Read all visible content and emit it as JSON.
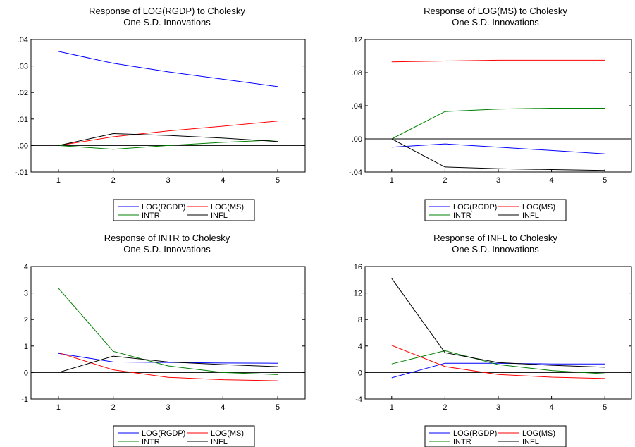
{
  "colors": {
    "LOG(RGDP)": "#0000ff",
    "LOG(MS)": "#ff0000",
    "INTR": "#008000",
    "INFL": "#000000"
  },
  "chart_data": [
    {
      "type": "line",
      "title": "Response of LOG(RGDP) to Cholesky",
      "subtitle": "One S.D. Innovations",
      "x": [
        1,
        2,
        3,
        4,
        5
      ],
      "xticks": [
        "1",
        "2",
        "3",
        "4",
        "5"
      ],
      "ylim": [
        -0.01,
        0.04
      ],
      "yticks": [
        -0.01,
        0.0,
        0.01,
        0.02,
        0.03,
        0.04
      ],
      "ytick_labels": [
        "-.01",
        ".00",
        ".01",
        ".02",
        ".03",
        ".04"
      ],
      "zero_line": true,
      "grid": false,
      "legend_position": "bottom",
      "series": [
        {
          "name": "LOG(RGDP)",
          "values": [
            0.0355,
            0.031,
            0.0278,
            0.025,
            0.0222
          ]
        },
        {
          "name": "LOG(MS)",
          "values": [
            0.0,
            0.0033,
            0.0055,
            0.0073,
            0.0092
          ]
        },
        {
          "name": "INTR",
          "values": [
            0.0,
            -0.0014,
            0.0,
            0.0012,
            0.0021
          ]
        },
        {
          "name": "INFL",
          "values": [
            0.0,
            0.0045,
            0.0038,
            0.0028,
            0.0015
          ]
        }
      ]
    },
    {
      "type": "line",
      "title": "Response of LOG(MS) to Cholesky",
      "subtitle": "One S.D. Innovations",
      "x": [
        1,
        2,
        3,
        4,
        5
      ],
      "xticks": [
        "1",
        "2",
        "3",
        "4",
        "5"
      ],
      "ylim": [
        -0.04,
        0.12
      ],
      "yticks": [
        -0.04,
        0.0,
        0.04,
        0.08,
        0.12
      ],
      "ytick_labels": [
        "-.04",
        ".00",
        ".04",
        ".08",
        ".12"
      ],
      "zero_line": true,
      "grid": false,
      "legend_position": "bottom",
      "series": [
        {
          "name": "LOG(RGDP)",
          "values": [
            -0.01,
            -0.006,
            -0.01,
            -0.014,
            -0.018
          ]
        },
        {
          "name": "LOG(MS)",
          "values": [
            0.093,
            0.094,
            0.095,
            0.095,
            0.095
          ]
        },
        {
          "name": "INTR",
          "values": [
            0.0,
            0.033,
            0.036,
            0.037,
            0.037
          ]
        },
        {
          "name": "INFL",
          "values": [
            0.0,
            -0.034,
            -0.036,
            -0.037,
            -0.038
          ]
        }
      ]
    },
    {
      "type": "line",
      "title": "Response of INTR to Cholesky",
      "subtitle": "One S.D. Innovations",
      "x": [
        1,
        2,
        3,
        4,
        5
      ],
      "xticks": [
        "1",
        "2",
        "3",
        "4",
        "5"
      ],
      "ylim": [
        -1,
        4
      ],
      "yticks": [
        -1,
        0,
        1,
        2,
        3,
        4
      ],
      "ytick_labels": [
        "-1",
        "0",
        "1",
        "2",
        "3",
        "4"
      ],
      "zero_line": true,
      "grid": false,
      "legend_position": "bottom",
      "series": [
        {
          "name": "LOG(RGDP)",
          "values": [
            0.72,
            0.4,
            0.38,
            0.36,
            0.35
          ]
        },
        {
          "name": "LOG(MS)",
          "values": [
            0.75,
            0.1,
            -0.18,
            -0.27,
            -0.31
          ]
        },
        {
          "name": "INTR",
          "values": [
            3.18,
            0.8,
            0.25,
            0.0,
            -0.08
          ]
        },
        {
          "name": "INFL",
          "values": [
            0.0,
            0.62,
            0.4,
            0.3,
            0.22
          ]
        }
      ]
    },
    {
      "type": "line",
      "title": "Response of INFL to Cholesky",
      "subtitle": "One S.D. Innovations",
      "x": [
        1,
        2,
        3,
        4,
        5
      ],
      "xticks": [
        "1",
        "2",
        "3",
        "4",
        "5"
      ],
      "ylim": [
        -4,
        16
      ],
      "yticks": [
        -4,
        0,
        4,
        8,
        12,
        16
      ],
      "ytick_labels": [
        "-4",
        "0",
        "4",
        "8",
        "12",
        "16"
      ],
      "zero_line": true,
      "grid": false,
      "legend_position": "bottom",
      "series": [
        {
          "name": "LOG(RGDP)",
          "values": [
            -0.8,
            1.4,
            1.4,
            1.3,
            1.3
          ]
        },
        {
          "name": "LOG(MS)",
          "values": [
            4.1,
            0.9,
            -0.3,
            -0.7,
            -0.9
          ]
        },
        {
          "name": "INTR",
          "values": [
            1.3,
            3.3,
            1.2,
            0.3,
            -0.2
          ]
        },
        {
          "name": "INFL",
          "values": [
            14.2,
            3.0,
            1.5,
            1.1,
            0.8
          ]
        }
      ]
    }
  ]
}
